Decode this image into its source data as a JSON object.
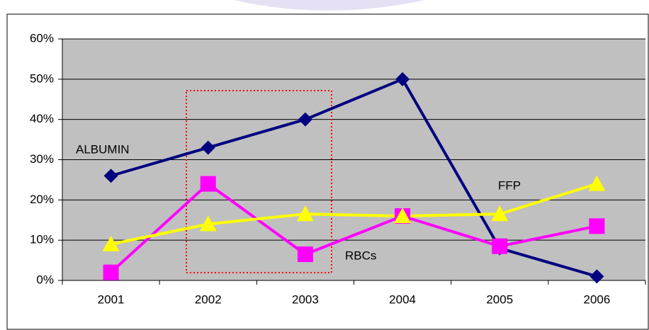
{
  "chart_data": {
    "type": "line",
    "categories": [
      "2001",
      "2002",
      "2003",
      "2004",
      "2005",
      "2006"
    ],
    "series": [
      {
        "name": "ALBUMIN",
        "color": "#000080",
        "marker": "diamond",
        "values": [
          26,
          33,
          40,
          50,
          8,
          1
        ]
      },
      {
        "name": "RBCs",
        "color": "#ff00ff",
        "marker": "square",
        "values": [
          2,
          24,
          6.5,
          16,
          8.5,
          13.5
        ]
      },
      {
        "name": "FFP",
        "color": "#ffff00",
        "marker": "triangle",
        "values": [
          9,
          14,
          16.5,
          16,
          16.5,
          24
        ]
      }
    ],
    "ylim": [
      0,
      60
    ],
    "yticks": [
      {
        "value": 0,
        "label": "0%"
      },
      {
        "value": 10,
        "label": "10%"
      },
      {
        "value": 20,
        "label": "20%"
      },
      {
        "value": 30,
        "label": "30%"
      },
      {
        "value": 40,
        "label": "40%"
      },
      {
        "value": 50,
        "label": "50%"
      },
      {
        "value": 60,
        "label": "60%"
      }
    ],
    "grid": true
  }
}
